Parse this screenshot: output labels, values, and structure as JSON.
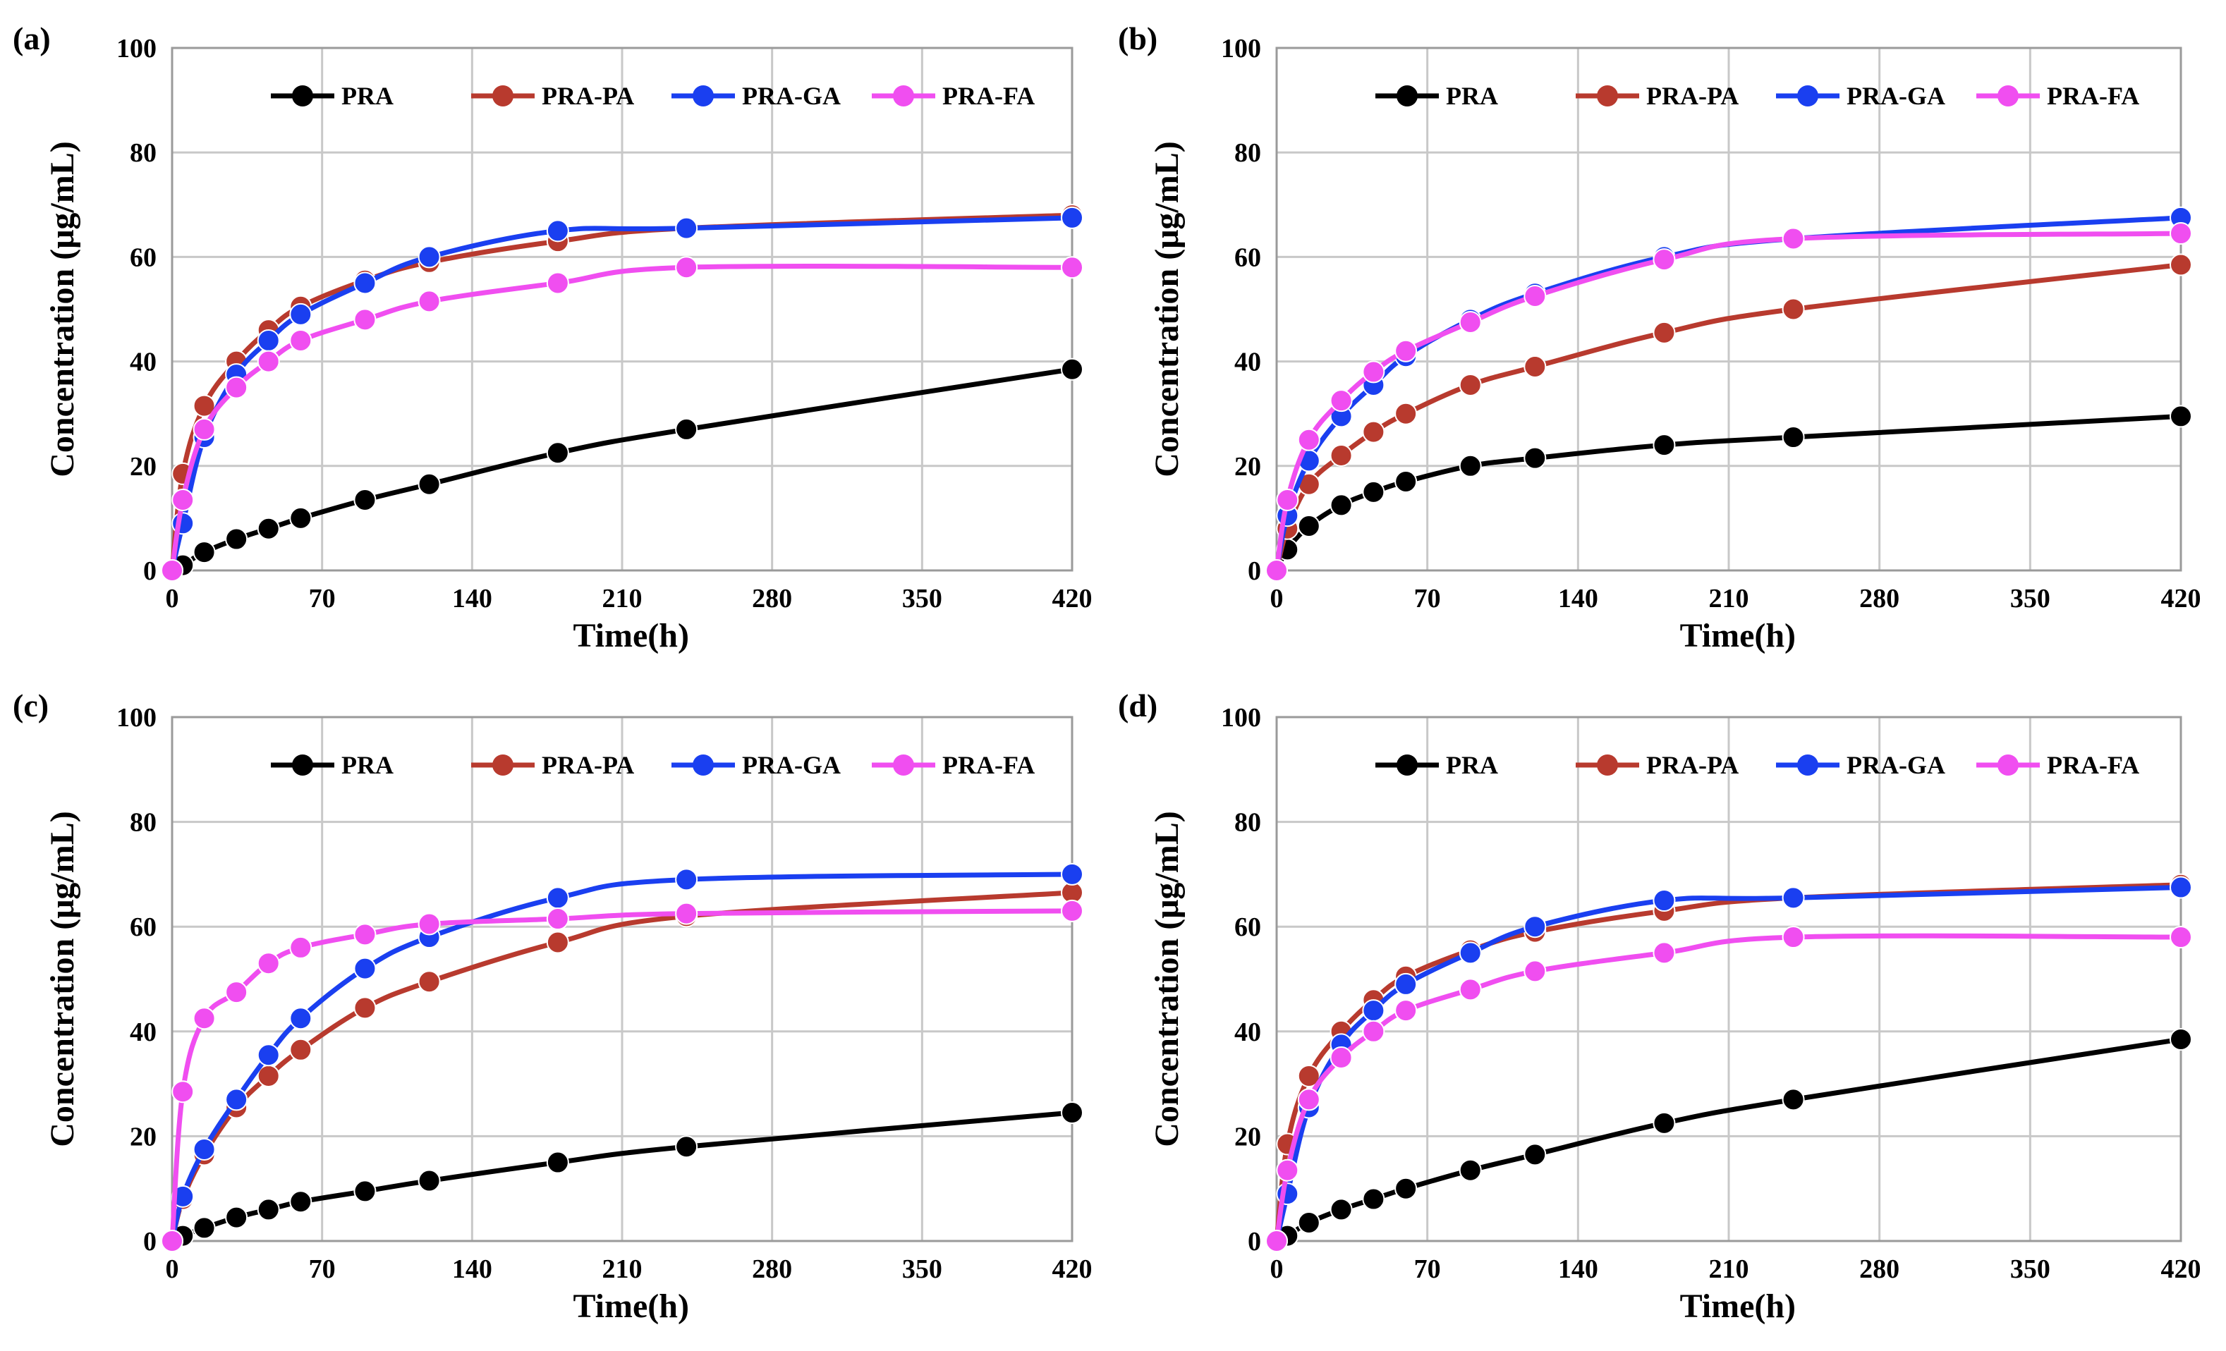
{
  "chart_data": [
    {
      "panel": "(a)",
      "type": "line",
      "xlabel": "Time(h)",
      "ylabel": "Concentration (μg/mL)",
      "xlim": [
        0,
        420
      ],
      "ylim": [
        0,
        100
      ],
      "x_ticks": [
        0,
        70,
        140,
        210,
        280,
        350,
        420
      ],
      "y_ticks": [
        0,
        20,
        40,
        60,
        80,
        100
      ],
      "x": [
        0,
        5,
        15,
        30,
        45,
        60,
        90,
        120,
        180,
        240,
        420
      ],
      "series": [
        {
          "name": "PRA",
          "color": "#000000",
          "values": [
            0,
            1,
            3.5,
            6,
            8,
            10,
            13.5,
            16.5,
            22.5,
            27,
            38.5
          ]
        },
        {
          "name": "PRA-PA",
          "color": "#b83a2e",
          "values": [
            0,
            18.5,
            31.5,
            40,
            46,
            50.5,
            55.5,
            59,
            63,
            65.5,
            68
          ]
        },
        {
          "name": "PRA-GA",
          "color": "#1a3ff0",
          "values": [
            0,
            9,
            25.5,
            37.5,
            44,
            49,
            55,
            60,
            65,
            65.5,
            67.5
          ]
        },
        {
          "name": "PRA-FA",
          "color": "#f04ef0",
          "values": [
            0,
            13.5,
            27,
            35,
            40,
            44,
            48,
            51.5,
            55,
            58,
            58
          ]
        }
      ]
    },
    {
      "panel": "(b)",
      "type": "line",
      "xlabel": "Time(h)",
      "ylabel": "Concentration (μg/mL)",
      "xlim": [
        0,
        420
      ],
      "ylim": [
        0,
        100
      ],
      "x_ticks": [
        0,
        70,
        140,
        210,
        280,
        350,
        420
      ],
      "y_ticks": [
        0,
        20,
        40,
        60,
        80,
        100
      ],
      "x": [
        0,
        5,
        15,
        30,
        45,
        60,
        90,
        120,
        180,
        240,
        420
      ],
      "series": [
        {
          "name": "PRA",
          "color": "#000000",
          "values": [
            0,
            4,
            8.5,
            12.5,
            15,
            17,
            20,
            21.5,
            24,
            25.5,
            29.5
          ]
        },
        {
          "name": "PRA-PA",
          "color": "#b83a2e",
          "values": [
            0,
            8,
            16.5,
            22,
            26.5,
            30,
            35.5,
            39,
            45.5,
            50,
            58.5
          ]
        },
        {
          "name": "PRA-GA",
          "color": "#1a3ff0",
          "values": [
            0,
            10.5,
            21,
            29.5,
            35.5,
            41,
            48,
            53,
            60,
            63.5,
            67.5
          ]
        },
        {
          "name": "PRA-FA",
          "color": "#f04ef0",
          "values": [
            0,
            13.5,
            25,
            32.5,
            38,
            42,
            47.5,
            52.5,
            59.5,
            63.5,
            64.5
          ]
        }
      ]
    },
    {
      "panel": "(c)",
      "type": "line",
      "xlabel": "Time(h)",
      "ylabel": "Concentration (μg/mL)",
      "xlim": [
        0,
        420
      ],
      "ylim": [
        0,
        100
      ],
      "x_ticks": [
        0,
        70,
        140,
        210,
        280,
        350,
        420
      ],
      "y_ticks": [
        0,
        20,
        40,
        60,
        80,
        100
      ],
      "x": [
        0,
        5,
        15,
        30,
        45,
        60,
        90,
        120,
        180,
        240,
        420
      ],
      "series": [
        {
          "name": "PRA",
          "color": "#000000",
          "values": [
            0,
            1,
            2.5,
            4.5,
            6,
            7.5,
            9.5,
            11.5,
            15,
            18,
            24.5
          ]
        },
        {
          "name": "PRA-PA",
          "color": "#b83a2e",
          "values": [
            0,
            8,
            16.5,
            25.5,
            31.5,
            36.5,
            44.5,
            49.5,
            57,
            62,
            66.5
          ]
        },
        {
          "name": "PRA-GA",
          "color": "#1a3ff0",
          "values": [
            0,
            8.5,
            17.5,
            27,
            35.5,
            42.5,
            52,
            58,
            65.5,
            69,
            70
          ]
        },
        {
          "name": "PRA-FA",
          "color": "#f04ef0",
          "values": [
            0,
            28.5,
            42.5,
            47.5,
            53,
            56,
            58.5,
            60.5,
            61.5,
            62.5,
            63
          ]
        }
      ]
    },
    {
      "panel": "(d)",
      "type": "line",
      "xlabel": "Time(h)",
      "ylabel": "Concentration (μg/mL)",
      "xlim": [
        0,
        420
      ],
      "ylim": [
        0,
        100
      ],
      "x_ticks": [
        0,
        70,
        140,
        210,
        280,
        350,
        420
      ],
      "y_ticks": [
        0,
        20,
        40,
        60,
        80,
        100
      ],
      "x": [
        0,
        5,
        15,
        30,
        45,
        60,
        90,
        120,
        180,
        240,
        420
      ],
      "series": [
        {
          "name": "PRA",
          "color": "#000000",
          "values": [
            0,
            1,
            3.5,
            6,
            8,
            10,
            13.5,
            16.5,
            22.5,
            27,
            38.5
          ]
        },
        {
          "name": "PRA-PA",
          "color": "#b83a2e",
          "values": [
            0,
            18.5,
            31.5,
            40,
            46,
            50.5,
            55.5,
            59,
            63,
            65.5,
            68
          ]
        },
        {
          "name": "PRA-GA",
          "color": "#1a3ff0",
          "values": [
            0,
            9,
            25.5,
            37.5,
            44,
            49,
            55,
            60,
            65,
            65.5,
            67.5
          ]
        },
        {
          "name": "PRA-FA",
          "color": "#f04ef0",
          "values": [
            0,
            13.5,
            27,
            35,
            40,
            44,
            48,
            51.5,
            55,
            58,
            58
          ]
        }
      ]
    }
  ]
}
